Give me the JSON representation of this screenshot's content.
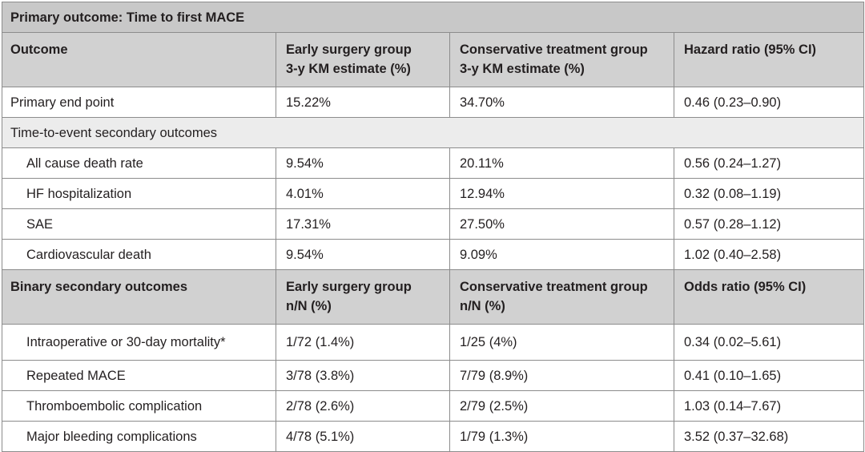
{
  "title": "Primary outcome: Time to first MACE",
  "header1": {
    "outcome": "Outcome",
    "early_line1": "Early surgery group",
    "early_line2": "3-y KM estimate (%)",
    "cons_line1": "Conservative treatment group",
    "cons_line2": "3-y KM estimate (%)",
    "ratio": "Hazard ratio (95% CI)"
  },
  "primary_row": {
    "label": "Primary end point",
    "early": "15.22%",
    "cons": "34.70%",
    "ratio": "0.46 (0.23–0.90)"
  },
  "time_section": "Time-to-event secondary outcomes",
  "time_rows": [
    {
      "label": "All cause death rate",
      "early": "9.54%",
      "cons": "20.11%",
      "ratio": "0.56 (0.24–1.27)"
    },
    {
      "label": "HF hospitalization",
      "early": "4.01%",
      "cons": "12.94%",
      "ratio": "0.32 (0.08–1.19)"
    },
    {
      "label": "SAE",
      "early": "17.31%",
      "cons": "27.50%",
      "ratio": "0.57 (0.28–1.12)"
    },
    {
      "label": "Cardiovascular death",
      "early": "9.54%",
      "cons": "9.09%",
      "ratio": "1.02 (0.40–2.58)"
    }
  ],
  "header2": {
    "outcome": "Binary secondary outcomes",
    "early_line1": "Early surgery group",
    "early_line2": "n/N (%)",
    "cons_line1": "Conservative treatment group",
    "cons_line2": "n/N (%)",
    "ratio": "Odds ratio (95% CI)"
  },
  "binary_rows": [
    {
      "label": "Intraoperative or 30-day mortality*",
      "early": "1/72 (1.4%)",
      "cons": "1/25 (4%)",
      "ratio": "0.34 (0.02–5.61)"
    },
    {
      "label": "Repeated MACE",
      "early": "3/78 (3.8%)",
      "cons": "7/79 (8.9%)",
      "ratio": "0.41 (0.10–1.65)"
    },
    {
      "label": "Thromboembolic complication",
      "early": "2/78 (2.6%)",
      "cons": "2/79 (2.5%)",
      "ratio": "1.03 (0.14–7.67)"
    },
    {
      "label": "Major bleeding complications",
      "early": "4/78 (5.1%)",
      "cons": "1/79 (1.3%)",
      "ratio": "3.52 (0.37–32.68)"
    }
  ]
}
